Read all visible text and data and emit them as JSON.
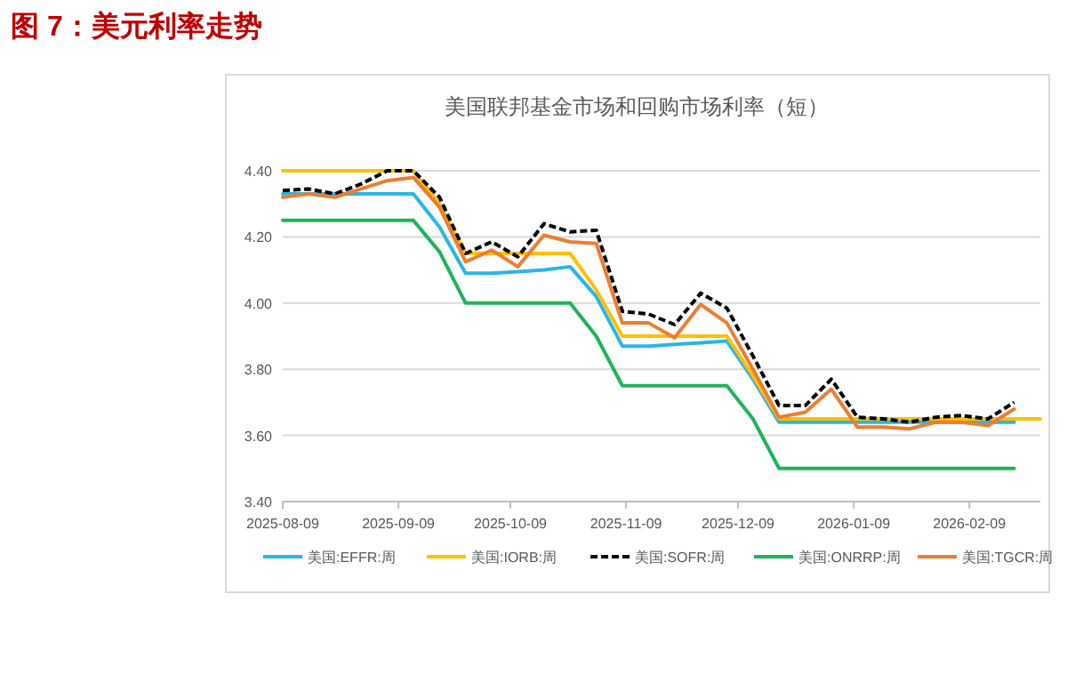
{
  "chart_data": {
    "type": "line",
    "title": "图 7：美元利率走势",
    "subtitle": "美国联邦基金市场和回购市场利率（短）",
    "x": [
      "2025-08-09",
      "2025-08-16",
      "2025-08-23",
      "2025-08-30",
      "2025-09-06",
      "2025-09-13",
      "2025-09-20",
      "2025-09-27",
      "2025-10-04",
      "2025-10-11",
      "2025-10-18",
      "2025-10-25",
      "2025-11-01",
      "2025-11-08",
      "2025-11-15",
      "2025-11-22",
      "2025-11-29",
      "2025-12-06",
      "2025-12-13",
      "2025-12-20",
      "2025-12-27",
      "2026-01-03",
      "2026-01-10",
      "2026-01-17",
      "2026-01-24",
      "2026-01-31",
      "2026-02-07",
      "2026-02-14",
      "2026-02-21",
      "2026-02-28"
    ],
    "series": [
      {
        "name": "美国:EFFR:周",
        "color": "#29b6e8",
        "values": [
          4.33,
          4.33,
          4.33,
          4.33,
          4.33,
          4.33,
          4.23,
          4.09,
          4.09,
          4.095,
          4.1,
          4.11,
          4.02,
          3.87,
          3.87,
          3.875,
          3.88,
          3.885,
          3.77,
          3.64,
          3.64,
          3.64,
          3.64,
          3.64,
          3.64,
          3.64,
          3.64,
          3.64,
          3.64,
          null
        ]
      },
      {
        "name": "美国:IORB:周",
        "color": "#ffc000",
        "values": [
          4.4,
          4.4,
          4.4,
          4.4,
          4.4,
          4.4,
          4.3,
          4.15,
          4.15,
          4.15,
          4.15,
          4.15,
          4.04,
          3.9,
          3.9,
          3.9,
          3.9,
          3.9,
          3.78,
          3.65,
          3.65,
          3.65,
          3.65,
          3.65,
          3.65,
          3.65,
          3.65,
          3.65,
          3.65,
          3.65
        ]
      },
      {
        "name": "美国:SOFR:周",
        "color": "#000000",
        "line_style": "dashed",
        "values": [
          4.34,
          4.345,
          4.33,
          4.36,
          4.4,
          4.4,
          4.32,
          4.15,
          4.185,
          4.14,
          4.24,
          4.215,
          4.22,
          3.975,
          3.967,
          3.935,
          4.03,
          3.985,
          3.84,
          3.69,
          3.69,
          3.77,
          3.655,
          3.65,
          3.64,
          3.655,
          3.66,
          3.65,
          3.7,
          null
        ]
      },
      {
        "name": "美国:ONRRP:周",
        "color": "#21b35a",
        "values": [
          4.25,
          4.25,
          4.25,
          4.25,
          4.25,
          4.25,
          4.155,
          4.0,
          4.0,
          4.0,
          4.0,
          4.0,
          3.9,
          3.75,
          3.75,
          3.75,
          3.75,
          3.75,
          3.65,
          3.5,
          3.5,
          3.5,
          3.5,
          3.5,
          3.5,
          3.5,
          3.5,
          3.5,
          3.5,
          null
        ]
      },
      {
        "name": "美国:TGCR:周",
        "color": "#ed7d31",
        "values": [
          4.32,
          4.33,
          4.32,
          4.345,
          4.37,
          4.38,
          4.29,
          4.125,
          4.16,
          4.11,
          4.205,
          4.185,
          4.18,
          3.94,
          3.94,
          3.895,
          3.996,
          3.94,
          3.8,
          3.655,
          3.67,
          3.74,
          3.625,
          3.625,
          3.62,
          3.64,
          3.64,
          3.63,
          3.68,
          null
        ]
      }
    ],
    "xlim": [
      "2025-08-09",
      "2026-02-28"
    ],
    "xticks": [
      "2025-08-09",
      "2025-09-09",
      "2025-10-09",
      "2025-11-09",
      "2025-12-09",
      "2026-01-09",
      "2026-02-09"
    ],
    "ylim": [
      3.4,
      4.4
    ],
    "yticks": [
      {
        "value": 3.4,
        "label": "3.40"
      },
      {
        "value": 3.6,
        "label": "3.60"
      },
      {
        "value": 3.8,
        "label": "3.80"
      },
      {
        "value": 4.0,
        "label": "4.00"
      },
      {
        "value": 4.2,
        "label": "4.20"
      },
      {
        "value": 4.4,
        "label": "4.40"
      }
    ],
    "grid": "y",
    "legend": "bottom"
  }
}
